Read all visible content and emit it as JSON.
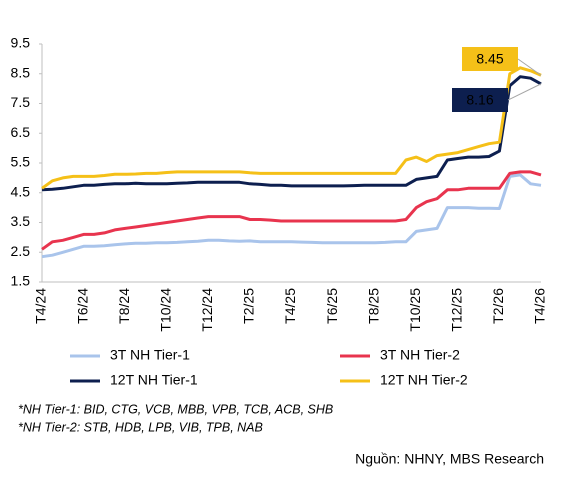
{
  "chart_data": {
    "type": "line",
    "categories": [
      "T4/24",
      null,
      null,
      null,
      "T6/24",
      null,
      null,
      null,
      "T8/24",
      null,
      null,
      null,
      "T10/24",
      null,
      null,
      null,
      "T12/24",
      null,
      null,
      null,
      "T2/25",
      null,
      null,
      null,
      "T4/25",
      null,
      null,
      null,
      "T6/25",
      null,
      null,
      null,
      "T8/25",
      null,
      null,
      null,
      "T10/25",
      null,
      null,
      null,
      "T12/25",
      null,
      null,
      null,
      "T2/26",
      null,
      null,
      null,
      "T4/26"
    ],
    "series": [
      {
        "name": "3T NH Tier-1",
        "color": "#a9c4eb",
        "values": [
          2.35,
          2.4,
          2.5,
          2.6,
          2.7,
          2.7,
          2.72,
          2.75,
          2.78,
          2.8,
          2.8,
          2.82,
          2.82,
          2.83,
          2.85,
          2.87,
          2.9,
          2.9,
          2.88,
          2.87,
          2.88,
          2.85,
          2.85,
          2.85,
          2.85,
          2.84,
          2.83,
          2.82,
          2.82,
          2.82,
          2.82,
          2.82,
          2.82,
          2.83,
          2.85,
          2.85,
          3.2,
          3.25,
          3.3,
          4.0,
          4.0,
          4.0,
          3.98,
          3.98,
          3.97,
          5.05,
          5.1,
          4.8,
          4.75
        ]
      },
      {
        "name": "3T NH Tier-2",
        "color": "#e8344e",
        "values": [
          2.6,
          2.85,
          2.9,
          3.0,
          3.1,
          3.1,
          3.15,
          3.25,
          3.3,
          3.35,
          3.4,
          3.45,
          3.5,
          3.55,
          3.6,
          3.65,
          3.7,
          3.7,
          3.7,
          3.7,
          3.6,
          3.6,
          3.58,
          3.55,
          3.55,
          3.55,
          3.55,
          3.55,
          3.55,
          3.55,
          3.55,
          3.55,
          3.55,
          3.55,
          3.55,
          3.6,
          4.0,
          4.2,
          4.3,
          4.6,
          4.6,
          4.65,
          4.65,
          4.65,
          4.65,
          5.15,
          5.2,
          5.2,
          5.1
        ]
      },
      {
        "name": "12T NH Tier-1",
        "color": "#0d1f4f",
        "values": [
          4.6,
          4.62,
          4.65,
          4.7,
          4.75,
          4.75,
          4.78,
          4.8,
          4.8,
          4.82,
          4.8,
          4.8,
          4.8,
          4.82,
          4.83,
          4.85,
          4.85,
          4.85,
          4.85,
          4.85,
          4.8,
          4.78,
          4.75,
          4.75,
          4.73,
          4.73,
          4.73,
          4.73,
          4.73,
          4.73,
          4.74,
          4.75,
          4.75,
          4.75,
          4.75,
          4.75,
          4.95,
          5.0,
          5.05,
          5.6,
          5.65,
          5.7,
          5.7,
          5.72,
          5.9,
          8.1,
          8.4,
          8.35,
          8.16
        ]
      },
      {
        "name": "12T NH Tier-2",
        "color": "#f5c018",
        "values": [
          4.65,
          4.9,
          5.0,
          5.05,
          5.05,
          5.05,
          5.08,
          5.12,
          5.12,
          5.13,
          5.15,
          5.15,
          5.18,
          5.2,
          5.2,
          5.2,
          5.2,
          5.2,
          5.2,
          5.2,
          5.17,
          5.15,
          5.15,
          5.15,
          5.15,
          5.15,
          5.15,
          5.15,
          5.15,
          5.15,
          5.15,
          5.15,
          5.15,
          5.15,
          5.15,
          5.6,
          5.7,
          5.55,
          5.75,
          5.8,
          5.85,
          5.95,
          6.05,
          6.15,
          6.2,
          8.5,
          8.7,
          8.6,
          8.45
        ]
      }
    ],
    "ylim": [
      1.5,
      9.5
    ],
    "yticks": [
      1.5,
      2.5,
      3.5,
      4.5,
      5.5,
      6.5,
      7.5,
      8.5,
      9.5
    ],
    "grid": false,
    "notes": [
      "*NH Tier-1: BID, CTG, VCB, MBB, VPB, TCB, ACB, SHB",
      "*NH Tier-2: STB, HDB, LPB, VIB, TPB, NAB"
    ],
    "source": "Nguồn: NHNY, MBS Research"
  }
}
